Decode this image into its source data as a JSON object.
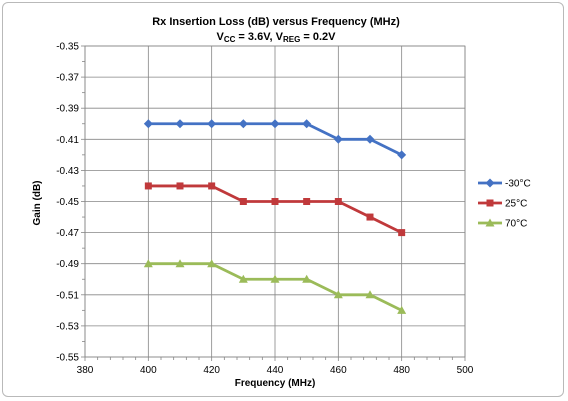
{
  "chart_data": {
    "type": "line",
    "title": "Rx Insertion Loss (dB) versus Frequency (MHz)",
    "subtitle": {
      "vcc_label": "V",
      "vcc_sub": "CC",
      "vcc_value": " = 3.6V, ",
      "vreg_label": "V",
      "vreg_sub": "REG",
      "vreg_value": " = 0.2V"
    },
    "xlabel": "Frequency (MHz)",
    "ylabel": "Gain (dB)",
    "xlim": [
      380,
      500
    ],
    "ylim": [
      -0.55,
      -0.35
    ],
    "xticks": [
      "380",
      "400",
      "420",
      "440",
      "460",
      "480",
      "500"
    ],
    "yticks": [
      "-0.35",
      "-0.37",
      "-0.39",
      "-0.41",
      "-0.43",
      "-0.45",
      "-0.47",
      "-0.49",
      "-0.51",
      "-0.53",
      "-0.55"
    ],
    "grid": true,
    "legend_position": "right",
    "x": [
      400,
      410,
      420,
      430,
      440,
      450,
      460,
      470,
      480
    ],
    "series": [
      {
        "name": "-30°C",
        "color": "#4472c4",
        "marker": "diamond",
        "values": [
          -0.4,
          -0.4,
          -0.4,
          -0.4,
          -0.4,
          -0.4,
          -0.41,
          -0.41,
          -0.42
        ]
      },
      {
        "name": "25°C",
        "color": "#c0393b",
        "marker": "square",
        "values": [
          -0.44,
          -0.44,
          -0.44,
          -0.45,
          -0.45,
          -0.45,
          -0.45,
          -0.46,
          -0.47
        ]
      },
      {
        "name": "70°C",
        "color": "#9bbb59",
        "marker": "triangle",
        "values": [
          -0.49,
          -0.49,
          -0.49,
          -0.5,
          -0.5,
          -0.5,
          -0.51,
          -0.51,
          -0.52
        ]
      }
    ]
  }
}
